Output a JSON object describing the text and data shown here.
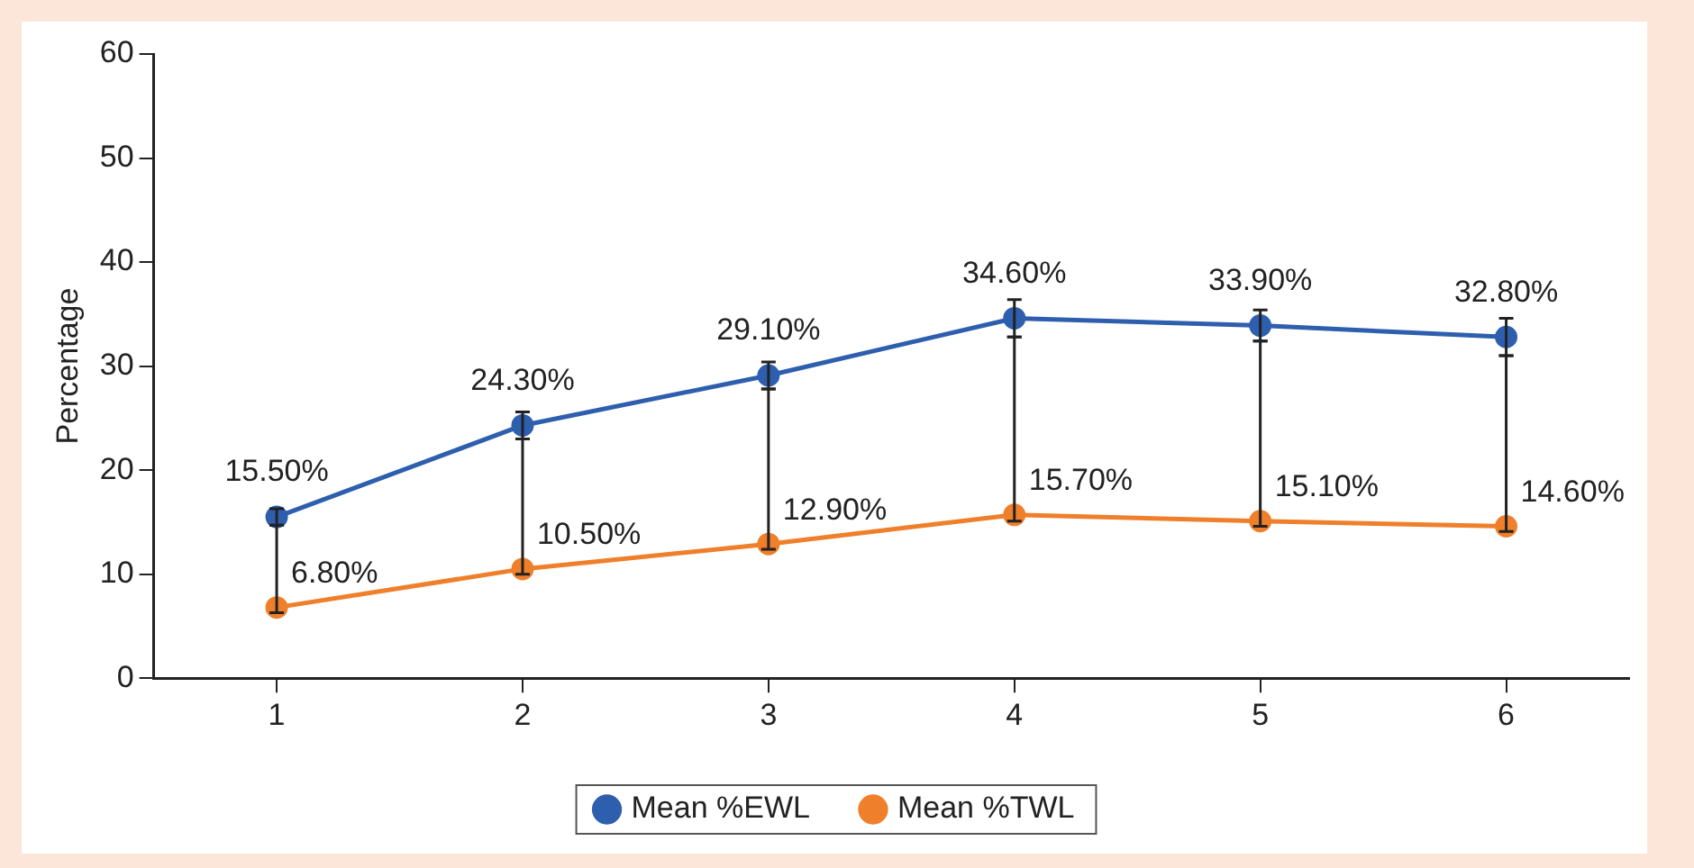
{
  "chart_data": {
    "type": "line",
    "ylabel": "Percentage",
    "categories": [
      "1",
      "2",
      "3",
      "4",
      "5",
      "6"
    ],
    "ylim": [
      0,
      60
    ],
    "yticks": [
      0,
      10,
      20,
      30,
      40,
      50,
      60
    ],
    "grid": false,
    "legend": "bottom",
    "marker": "circle",
    "line_style": "solid",
    "series": [
      {
        "name": "Mean %EWL",
        "color": "#2e5fae",
        "values": [
          15.5,
          24.3,
          29.1,
          34.6,
          33.9,
          32.8
        ],
        "errors": [
          0.8,
          1.3,
          1.3,
          1.8,
          1.5,
          1.8
        ],
        "value_labels": [
          "15.50%",
          "24.30%",
          "29.10%",
          "34.60%",
          "33.90%",
          "32.80%"
        ]
      },
      {
        "name": "Mean %TWL",
        "color": "#f07f2b",
        "values": [
          6.8,
          10.5,
          12.9,
          15.7,
          15.1,
          14.6
        ],
        "errors": [
          [
            6.3,
            14.7
          ],
          [
            10.0,
            23.0
          ],
          [
            12.4,
            27.8
          ],
          [
            15.1,
            32.8
          ],
          [
            14.6,
            32.4
          ],
          [
            14.1,
            31.0
          ]
        ],
        "value_labels": [
          "6.80%",
          "10.50%",
          "12.90%",
          "15.70%",
          "15.10%",
          "14.60%"
        ]
      }
    ]
  }
}
